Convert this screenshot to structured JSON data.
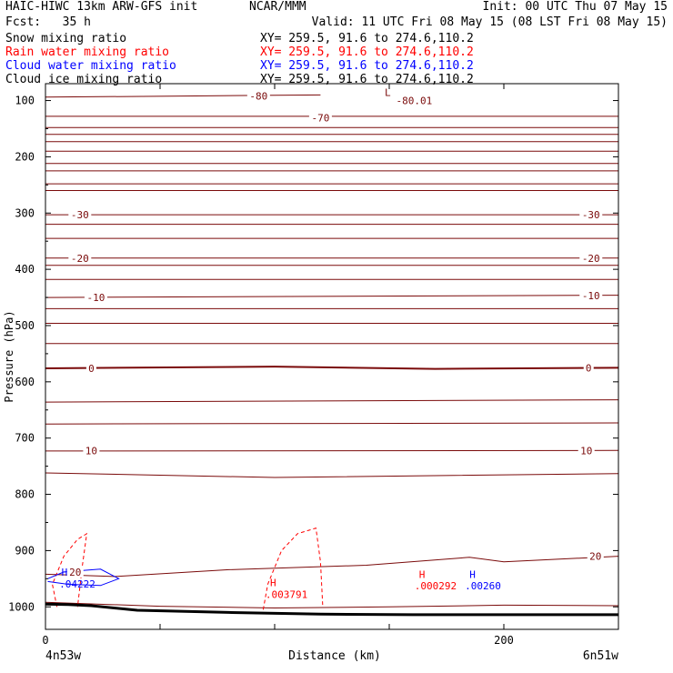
{
  "header": {
    "title_left": "HAIC-HIWC 13km ARW-GFS init",
    "agency": "NCAR/MMM",
    "init": "Init: 00 UTC Thu 07 May 15",
    "fcst": "Fcst:   35 h",
    "valid": "Valid: 11 UTC Fri 08 May 15 (08 LST Fri 08 May 15)",
    "fields": [
      {
        "label": "Snow mixing ratio",
        "xy": "XY= 259.5, 91.6 to 274.6,110.2",
        "color": "#000000"
      },
      {
        "label": "Rain water mixing ratio",
        "xy": "XY= 259.5, 91.6 to 274.6,110.2",
        "color": "#ff0000"
      },
      {
        "label": "Cloud water mixing ratio",
        "xy": "XY= 259.5, 91.6 to 274.6,110.2",
        "color": "#0000ff"
      },
      {
        "label": "Cloud ice mixing ratio",
        "xy": "XY= 259.5, 91.6 to 274.6,110.2",
        "color": "#000000"
      }
    ]
  },
  "colors": {
    "temperature": "#7a0a0a",
    "rain": "#ff0000",
    "cloud_water": "#0000ff",
    "terrain": "#000000"
  },
  "chart_data": {
    "type": "line",
    "title": "",
    "xlabel": "Distance (km)",
    "ylabel": "Pressure (hPa)",
    "xlim": [
      0,
      250
    ],
    "ylim": [
      1040,
      70
    ],
    "y_ticks": [
      100,
      200,
      300,
      400,
      500,
      600,
      700,
      800,
      900,
      1000
    ],
    "x_ticks": [
      0,
      200
    ],
    "x_endpoints": [
      "4n53w",
      "6n51w"
    ],
    "temperature_contours": [
      {
        "label": "-80",
        "x": [
          0,
          60,
          120
        ],
        "p": [
          94,
          92,
          90
        ],
        "label_x": 93,
        "label_p": 92
      },
      {
        "label": "-70",
        "x": [
          0,
          250
        ],
        "p": [
          128,
          128
        ],
        "label_x": 120,
        "label_p": 131
      },
      {
        "label": "",
        "x": [
          0,
          250
        ],
        "p": [
          148,
          148
        ]
      },
      {
        "label": "",
        "x": [
          0,
          250
        ],
        "p": [
          160,
          160
        ]
      },
      {
        "label": "",
        "x": [
          0,
          250
        ],
        "p": [
          173,
          173
        ]
      },
      {
        "label": "",
        "x": [
          0,
          250
        ],
        "p": [
          190,
          190
        ]
      },
      {
        "label": "",
        "x": [
          0,
          250
        ],
        "p": [
          212,
          212
        ]
      },
      {
        "label": "",
        "x": [
          0,
          250
        ],
        "p": [
          225,
          225
        ]
      },
      {
        "label": "",
        "x": [
          0,
          250
        ],
        "p": [
          248,
          248
        ]
      },
      {
        "label": "",
        "x": [
          0,
          250
        ],
        "p": [
          260,
          260
        ]
      },
      {
        "label": "-30",
        "x": [
          0,
          250
        ],
        "p": [
          303,
          303
        ],
        "label_x": 15,
        "label_p": 303,
        "label2_x": 238,
        "label2_p": 303
      },
      {
        "label": "",
        "x": [
          0,
          250
        ],
        "p": [
          320,
          320
        ]
      },
      {
        "label": "",
        "x": [
          0,
          250
        ],
        "p": [
          345,
          345
        ]
      },
      {
        "label": "-20",
        "x": [
          0,
          250
        ],
        "p": [
          380,
          380
        ],
        "label_x": 15,
        "label_p": 380,
        "label2_x": 238,
        "label2_p": 380
      },
      {
        "label": "",
        "x": [
          0,
          250
        ],
        "p": [
          393,
          393
        ]
      },
      {
        "label": "",
        "x": [
          0,
          250
        ],
        "p": [
          418,
          418
        ]
      },
      {
        "label": "-10",
        "x": [
          0,
          250
        ],
        "p": [
          450,
          446
        ],
        "label_x": 22,
        "label_p": 450,
        "label2_x": 238,
        "label2_p": 447
      },
      {
        "label": "",
        "x": [
          0,
          250
        ],
        "p": [
          470,
          470
        ]
      },
      {
        "label": "",
        "x": [
          0,
          250
        ],
        "p": [
          496,
          496
        ]
      },
      {
        "label": "",
        "x": [
          0,
          250
        ],
        "p": [
          532,
          532
        ]
      },
      {
        "label": "0",
        "x": [
          0,
          100,
          170,
          250
        ],
        "p": [
          576,
          573,
          577,
          575
        ],
        "label_x": 20,
        "label_p": 576,
        "label2_x": 237,
        "label2_p": 575,
        "bold": true
      },
      {
        "label": "",
        "x": [
          0,
          250
        ],
        "p": [
          636,
          632
        ]
      },
      {
        "label": "",
        "x": [
          0,
          250
        ],
        "p": [
          675,
          673
        ]
      },
      {
        "label": "10",
        "x": [
          0,
          250
        ],
        "p": [
          723,
          722
        ],
        "label_x": 20,
        "label_p": 722,
        "label2_x": 236,
        "label2_p": 722
      },
      {
        "label": "",
        "x": [
          0,
          100,
          250
        ],
        "p": [
          762,
          770,
          763
        ]
      },
      {
        "label": "20",
        "x": [
          0,
          30,
          80,
          140,
          185,
          200,
          250
        ],
        "p": [
          942,
          946,
          934,
          926,
          912,
          920,
          910
        ],
        "label_x": 13,
        "label_p": 938,
        "label2_x": 240,
        "label2_p": 910
      }
    ],
    "surface_temp_contour": {
      "x": [
        0,
        50,
        100,
        150,
        200,
        250
      ],
      "p": [
        992,
        999,
        1002,
        1000,
        997,
        998
      ]
    },
    "terrain": {
      "x": [
        0,
        10,
        20,
        40,
        80,
        120,
        160,
        200,
        250
      ],
      "p": [
        995,
        996,
        998,
        1006,
        1010,
        1013,
        1014,
        1014,
        1014
      ]
    },
    "rain_contours": [
      {
        "x": [
          5,
          3,
          8,
          14,
          18,
          16,
          14
        ],
        "p": [
          1000,
          960,
          910,
          880,
          870,
          930,
          1000
        ]
      },
      {
        "x": [
          95,
          97,
          103,
          110,
          118,
          120,
          121
        ],
        "p": [
          1005,
          960,
          900,
          870,
          860,
          920,
          1000
        ]
      }
    ],
    "cloud_water_contour": {
      "x": [
        1,
        8,
        24,
        32,
        24,
        10,
        1
      ],
      "p": [
        950,
        938,
        933,
        950,
        962,
        960,
        955
      ]
    },
    "annotations": [
      {
        "text": "L",
        "x": 148,
        "p": 85,
        "color": "temperature"
      },
      {
        "text": "-80.01",
        "x": 153,
        "p": 100,
        "color": "temperature"
      },
      {
        "text": "H",
        "x": 7,
        "p": 938,
        "color": "cloud_water"
      },
      {
        "text": ".04222",
        "x": 6,
        "p": 959,
        "color": "cloud_water"
      },
      {
        "text": "H",
        "x": 98,
        "p": 957,
        "color": "rain"
      },
      {
        "text": ".003791",
        "x": 96,
        "p": 978,
        "color": "rain"
      },
      {
        "text": "H",
        "x": 163,
        "p": 942,
        "color": "rain"
      },
      {
        "text": ".000292",
        "x": 161,
        "p": 962,
        "color": "rain"
      },
      {
        "text": "H",
        "x": 185,
        "p": 942,
        "color": "cloud_water"
      },
      {
        "text": ".00260",
        "x": 183,
        "p": 962,
        "color": "cloud_water"
      }
    ]
  }
}
